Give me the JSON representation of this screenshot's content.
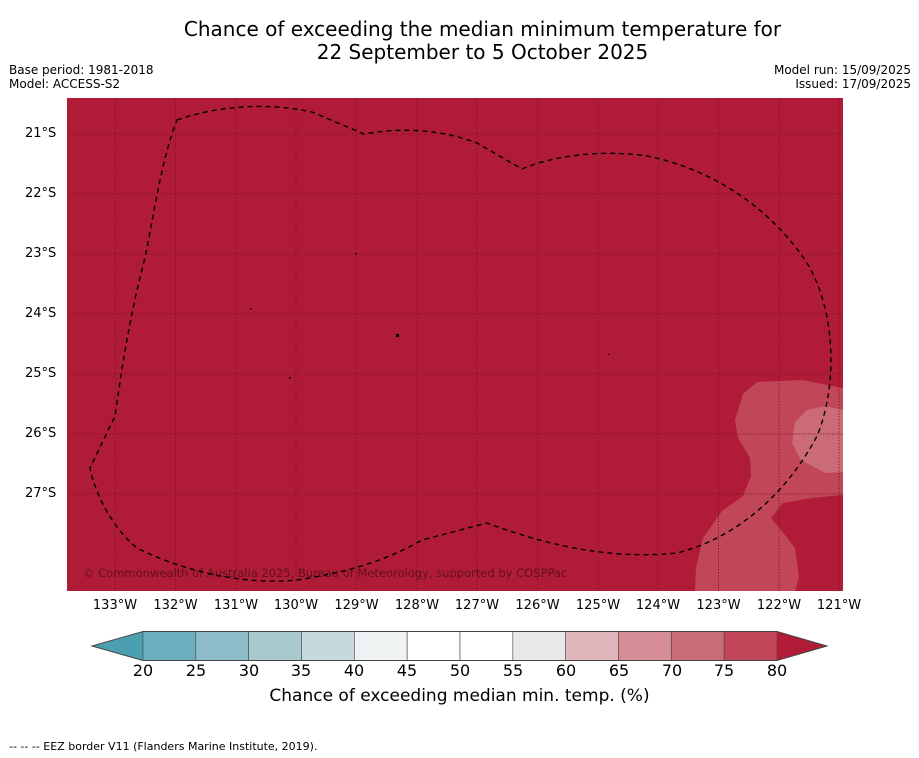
{
  "title": {
    "line1": "Chance of exceeding the median minimum temperature for",
    "line2": "22 September to 5 October 2025"
  },
  "meta": {
    "base_period": "Base period: 1981-2018",
    "model": "Model: ACCESS-S2",
    "model_run": "Model run: 15/09/2025",
    "issued": "Issued: 17/09/2025"
  },
  "map": {
    "lat_labels": [
      "21°S",
      "22°S",
      "23°S",
      "24°S",
      "25°S",
      "26°S",
      "27°S"
    ],
    "lon_labels": [
      "133°W",
      "132°W",
      "131°W",
      "130°W",
      "129°W",
      "128°W",
      "127°W",
      "126°W",
      "125°W",
      "124°W",
      "123°W",
      "122°W",
      "121°W"
    ],
    "copyright": "© Commonwealth of Australia 2025, Bureau of Meteorology, supported by COSPPac",
    "colors": {
      "gt80": "#b01c38",
      "75_80": "#c04658",
      "70_75": "#cb6b78",
      "grid": "#7a1226",
      "eez": "#000000"
    }
  },
  "colorbar": {
    "ticks": [
      "20",
      "25",
      "30",
      "35",
      "40",
      "45",
      "50",
      "55",
      "60",
      "65",
      "70",
      "75",
      "80"
    ],
    "colors": [
      "#4aa0b0",
      "#6daebe",
      "#8cbdc8",
      "#a8cacf",
      "#c8d9dd",
      "#eef2f3",
      "#ffffff",
      "#ffffff",
      "#e8e8e8",
      "#e0b6bc",
      "#d58d96",
      "#c96c78",
      "#c04658",
      "#b01c38"
    ],
    "label": "Chance of exceeding median min. temp. (%)"
  },
  "footer": "-- -- -- EEZ border V11 (Flanders Marine Institute, 2019)."
}
